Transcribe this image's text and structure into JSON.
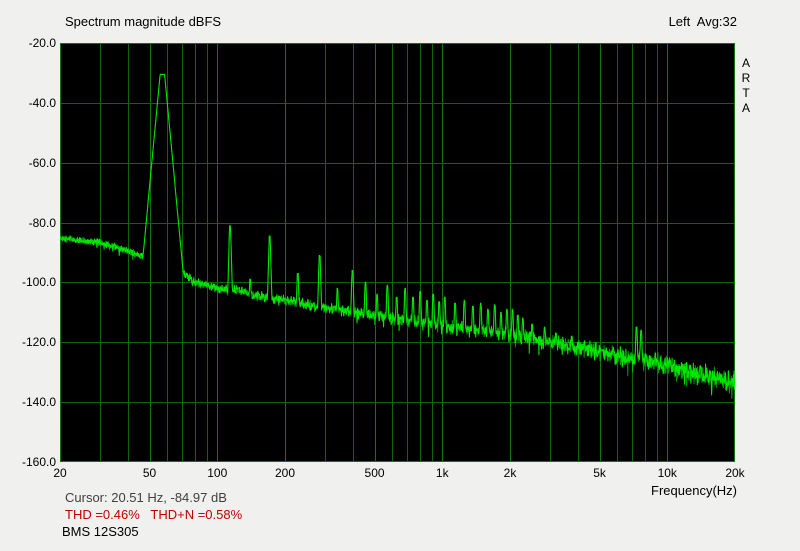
{
  "header": {
    "title": "Spectrum magnitude dBFS",
    "channel_info": "Left  Avg:32"
  },
  "watermark": {
    "letters": [
      "A",
      "R",
      "T",
      "A"
    ]
  },
  "footer": {
    "cursor_readout": "Cursor: 20.51 Hz, -84.97 dB",
    "thd_readout": "THD =0.46%   THD+N =0.58%",
    "device_label": "BMS 12S305",
    "x_axis_label": "Frequency(Hz)"
  },
  "colors": {
    "background": "#f0f0ee",
    "plot_background": "#000000",
    "grid": "#0d660d",
    "grid_major": "#0f750f",
    "trace": "#00e800",
    "thd_text": "#c00000",
    "cursor_text": "#404040",
    "text": "#000000"
  },
  "chart_data": {
    "type": "line",
    "title": "Spectrum magnitude dBFS",
    "xlabel": "Frequency(Hz)",
    "ylabel": "dBFS",
    "x_scale": "log",
    "xlim": [
      20,
      20000
    ],
    "ylim": [
      -160,
      -20
    ],
    "y_ticks": [
      -20,
      -40,
      -60,
      -80,
      -100,
      -120,
      -140,
      -160
    ],
    "y_tick_labels": [
      "-20.0",
      "-40.0",
      "-60.0",
      "-80.0",
      "-100.0",
      "-120.0",
      "-140.0",
      "-160.0"
    ],
    "x_major_ticks": [
      20,
      50,
      100,
      200,
      500,
      1000,
      2000,
      5000,
      10000,
      20000
    ],
    "x_tick_labels": [
      "20",
      "50",
      "100",
      "200",
      "500",
      "1k",
      "2k",
      "5k",
      "10k",
      "20k"
    ],
    "x_grid_lines": [
      20,
      30,
      40,
      50,
      60,
      70,
      80,
      90,
      100,
      200,
      300,
      400,
      500,
      600,
      700,
      800,
      900,
      1000,
      2000,
      3000,
      4000,
      5000,
      6000,
      7000,
      8000,
      9000,
      10000,
      20000
    ],
    "channel": "Left",
    "averages": 32,
    "cursor": {
      "f_hz": 20.51,
      "db": -84.97
    },
    "thd_percent": 0.46,
    "thd_n_percent": 0.58,
    "noise_floor": [
      [
        20,
        -85
      ],
      [
        25,
        -86
      ],
      [
        30,
        -86.5
      ],
      [
        35,
        -88
      ],
      [
        40,
        -89.5
      ],
      [
        45,
        -91
      ],
      [
        55,
        -93.5
      ],
      [
        65,
        -95
      ],
      [
        70,
        -96.5
      ],
      [
        80,
        -100
      ],
      [
        100,
        -102
      ],
      [
        125,
        -102.5
      ],
      [
        150,
        -104.5
      ],
      [
        200,
        -106
      ],
      [
        300,
        -108.5
      ],
      [
        500,
        -111
      ],
      [
        700,
        -112.5
      ],
      [
        1000,
        -114.5
      ],
      [
        1500,
        -116
      ],
      [
        2000,
        -117.5
      ],
      [
        3000,
        -120
      ],
      [
        5000,
        -123
      ],
      [
        7000,
        -125.5
      ],
      [
        10000,
        -127.5
      ],
      [
        14000,
        -130.5
      ],
      [
        20000,
        -133.5
      ]
    ],
    "noise_spread_db": [
      [
        20,
        1.2
      ],
      [
        100,
        1.8
      ],
      [
        500,
        2.2
      ],
      [
        1500,
        2.8
      ],
      [
        2500,
        3.0
      ],
      [
        8000,
        3.6
      ],
      [
        20000,
        4.4
      ]
    ],
    "peaks": [
      {
        "f": 57,
        "db": -30.5,
        "slope": 800,
        "flat": 0.01
      },
      {
        "f": 114,
        "db": -81,
        "slope": 2600,
        "flat": 0.002
      },
      {
        "f": 140,
        "db": -99,
        "slope": 2600,
        "flat": 0.002
      },
      {
        "f": 171,
        "db": -84.5,
        "slope": 2600,
        "flat": 0.002
      },
      {
        "f": 228,
        "db": -97,
        "slope": 2600,
        "flat": 0.002
      },
      {
        "f": 285,
        "db": -91,
        "slope": 2600,
        "flat": 0.002
      },
      {
        "f": 342,
        "db": -102,
        "slope": 2600,
        "flat": 0.002
      },
      {
        "f": 399,
        "db": -96,
        "slope": 2600,
        "flat": 0.002
      },
      {
        "f": 456,
        "db": -100,
        "slope": 2600,
        "flat": 0.002
      },
      {
        "f": 513,
        "db": -104,
        "slope": 2600,
        "flat": 0.002
      },
      {
        "f": 570,
        "db": -101,
        "slope": 2600,
        "flat": 0.002
      },
      {
        "f": 627,
        "db": -105,
        "slope": 2600,
        "flat": 0.002
      },
      {
        "f": 684,
        "db": -102,
        "slope": 2600,
        "flat": 0.002
      },
      {
        "f": 741,
        "db": -105,
        "slope": 2600,
        "flat": 0.002
      },
      {
        "f": 798,
        "db": -103,
        "slope": 2600,
        "flat": 0.002
      },
      {
        "f": 855,
        "db": -106,
        "slope": 2600,
        "flat": 0.002
      },
      {
        "f": 912,
        "db": -104,
        "slope": 2600,
        "flat": 0.002
      },
      {
        "f": 969,
        "db": -106.5,
        "slope": 2600,
        "flat": 0.002
      },
      {
        "f": 1026,
        "db": -105,
        "slope": 2600,
        "flat": 0.002
      },
      {
        "f": 1140,
        "db": -107,
        "slope": 2600,
        "flat": 0.002
      },
      {
        "f": 1254,
        "db": -106,
        "slope": 2600,
        "flat": 0.002
      },
      {
        "f": 1368,
        "db": -108,
        "slope": 2600,
        "flat": 0.002
      },
      {
        "f": 1482,
        "db": -107,
        "slope": 2600,
        "flat": 0.002
      },
      {
        "f": 1596,
        "db": -109,
        "slope": 2600,
        "flat": 0.002
      },
      {
        "f": 1710,
        "db": -107.5,
        "slope": 2600,
        "flat": 0.002
      },
      {
        "f": 1824,
        "db": -110,
        "slope": 2600,
        "flat": 0.002
      },
      {
        "f": 1938,
        "db": -109,
        "slope": 2600,
        "flat": 0.002
      },
      {
        "f": 2052,
        "db": -109,
        "slope": 2600,
        "flat": 0.002
      },
      {
        "f": 2166,
        "db": -111,
        "slope": 2600,
        "flat": 0.002
      },
      {
        "f": 2280,
        "db": -112,
        "slope": 2600,
        "flat": 0.002
      },
      {
        "f": 2508,
        "db": -114,
        "slope": 2600,
        "flat": 0.002
      },
      {
        "f": 2850,
        "db": -115,
        "slope": 2600,
        "flat": 0.002
      },
      {
        "f": 3200,
        "db": -117,
        "slope": 2600,
        "flat": 0.002
      },
      {
        "f": 3762,
        "db": -118,
        "slope": 2600,
        "flat": 0.002
      },
      {
        "f": 4500,
        "db": -121,
        "slope": 2600,
        "flat": 0.002
      },
      {
        "f": 5130,
        "db": -122.5,
        "slope": 2600,
        "flat": 0.002
      },
      {
        "f": 5700,
        "db": -124,
        "slope": 2600,
        "flat": 0.002
      },
      {
        "f": 7300,
        "db": -115,
        "slope": 2600,
        "flat": 0.002
      },
      {
        "f": 7650,
        "db": -116,
        "slope": 2600,
        "flat": 0.002
      },
      {
        "f": 9000,
        "db": -126.5,
        "slope": 2600,
        "flat": 0.002
      },
      {
        "f": 11400,
        "db": -128.5,
        "slope": 2600,
        "flat": 0.002
      }
    ]
  }
}
